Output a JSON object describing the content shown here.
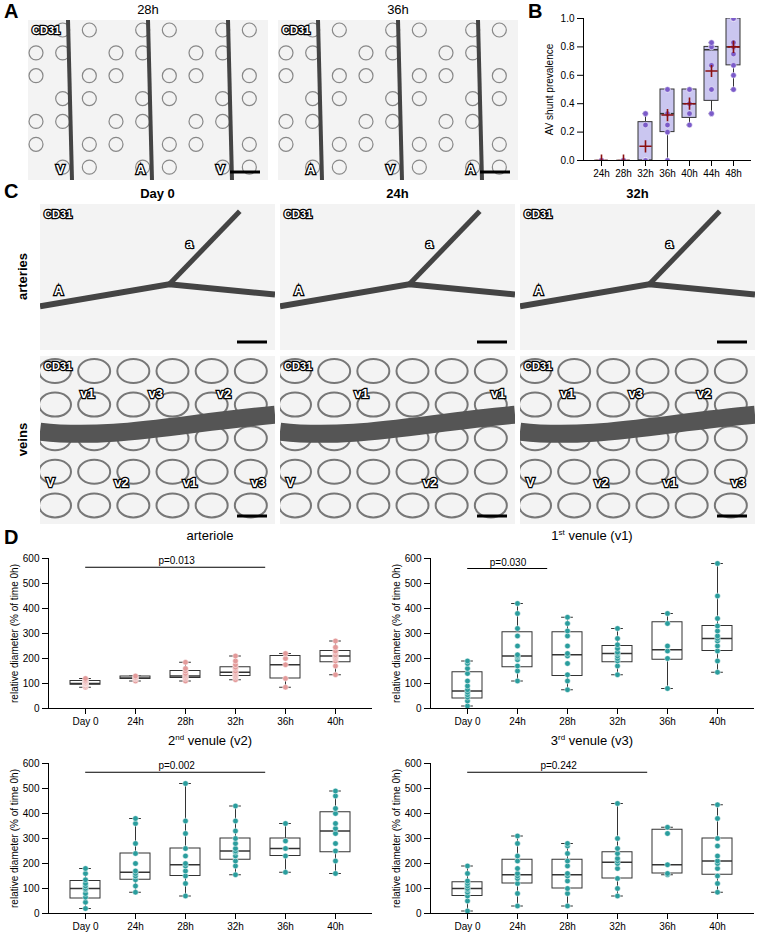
{
  "figure": {
    "panel_letters": [
      "A",
      "B",
      "C",
      "D"
    ]
  },
  "image_panels": {
    "A": {
      "stain": "CD31",
      "images": [
        {
          "title": "28h",
          "labels": [
            "V",
            "A",
            "V"
          ]
        },
        {
          "title": "36h",
          "labels": [
            "A",
            "V",
            "A"
          ]
        }
      ]
    },
    "C": {
      "stain": "CD31",
      "columns": [
        "Day 0",
        "24h",
        "32h"
      ],
      "rows": [
        {
          "title": "arteries",
          "cells": [
            [
              "A",
              "a"
            ],
            [
              "A",
              "a"
            ],
            [
              "A",
              "a"
            ]
          ]
        },
        {
          "title": "veins",
          "cells": [
            [
              "V",
              "v1",
              "v2",
              "v3",
              "v1",
              "v2",
              "v3"
            ],
            [
              "V",
              "v1",
              "v2",
              "v1"
            ],
            [
              "V",
              "v1",
              "v2",
              "v3",
              "v1",
              "v2",
              "v3"
            ]
          ]
        }
      ]
    }
  },
  "chart_data": [
    {
      "type": "box",
      "y_label": "AV shunt prevalence",
      "categories": [
        "24h",
        "28h",
        "32h",
        "36h",
        "40h",
        "44h",
        "48h"
      ],
      "ylim": [
        0,
        1
      ],
      "yticks": [
        {
          "value": 0,
          "label": "0.0"
        },
        0.2,
        0.4,
        0.6,
        0.8,
        {
          "value": 1,
          "label": "1.0"
        }
      ],
      "color": "#7b5bc9",
      "boxes": [
        {
          "min": 0,
          "q1": 0,
          "median": 0,
          "q3": 0,
          "max": 0
        },
        {
          "min": 0,
          "q1": 0,
          "median": 0,
          "q3": 0,
          "max": 0
        },
        {
          "min": 0,
          "q1": 0,
          "median": 0,
          "q3": 0.27,
          "max": 0.33
        },
        {
          "min": 0,
          "q1": 0.2,
          "median": 0.33,
          "q3": 0.5,
          "max": 0.5
        },
        {
          "min": 0.25,
          "q1": 0.3,
          "median": 0.4,
          "q3": 0.5,
          "max": 0.5
        },
        {
          "min": 0.33,
          "q1": 0.42,
          "median": 0.78,
          "q3": 0.8,
          "max": 0.83
        },
        {
          "min": 0.5,
          "q1": 0.67,
          "median": 0.8,
          "q3": 1,
          "max": 1
        }
      ],
      "means": [
        0,
        0,
        0.1,
        0.32,
        0.4,
        0.63,
        0.8
      ],
      "points": [
        [
          0,
          0,
          0,
          0,
          0
        ],
        [
          0,
          0,
          0,
          0,
          0,
          0
        ],
        [
          0,
          0,
          0,
          0,
          0.25,
          0.33
        ],
        [
          0,
          0.2,
          0.25,
          0.33,
          0.33,
          0.5,
          0.5
        ],
        [
          0.25,
          0.33,
          0.4,
          0.4,
          0.5,
          0.5
        ],
        [
          0.33,
          0.5,
          0.67,
          0.8,
          0.8,
          0.83
        ],
        [
          0.5,
          0.6,
          0.67,
          0.75,
          0.8,
          0.8,
          0.8,
          0.83,
          1,
          1,
          1,
          1
        ]
      ]
    },
    {
      "type": "box",
      "title": "arteriole",
      "y_label": "relative diameter (% of time 0h)",
      "categories": [
        "Day 0",
        "24h",
        "28h",
        "32h",
        "36h",
        "40h"
      ],
      "ylim": [
        0,
        600
      ],
      "yticks": [
        0,
        100,
        200,
        300,
        400,
        500,
        600
      ],
      "color": "#e39a9a",
      "boxes": [
        {
          "min": 85,
          "q1": 95,
          "median": 100,
          "q3": 110,
          "max": 120
        },
        {
          "min": 110,
          "q1": 118,
          "median": 122,
          "q3": 128,
          "max": 130
        },
        {
          "min": 110,
          "q1": 122,
          "median": 130,
          "q3": 150,
          "max": 185
        },
        {
          "min": 115,
          "q1": 130,
          "median": 145,
          "q3": 165,
          "max": 210
        },
        {
          "min": 85,
          "q1": 120,
          "median": 175,
          "q3": 210,
          "max": 220
        },
        {
          "min": 135,
          "q1": 185,
          "median": 210,
          "q3": 230,
          "max": 270
        }
      ],
      "points": [
        [
          85,
          90,
          95,
          98,
          100,
          100,
          102,
          105,
          108,
          110,
          115,
          120
        ],
        [
          110,
          118,
          122,
          125,
          130
        ],
        [
          110,
          120,
          125,
          130,
          135,
          140,
          150,
          160,
          185
        ],
        [
          115,
          125,
          130,
          135,
          140,
          145,
          150,
          160,
          165,
          175,
          190,
          210
        ],
        [
          85,
          120,
          175,
          200,
          220
        ],
        [
          135,
          170,
          190,
          200,
          205,
          210,
          215,
          225,
          230,
          245,
          270
        ]
      ],
      "annotations": [
        {
          "text": "p=0.013",
          "from": "Day 0",
          "to": "32h",
          "y": 565
        }
      ]
    },
    {
      "type": "box",
      "title": "1st venule (v1)",
      "y_label": "relative diameter (% of time 0h)",
      "categories": [
        "Day 0",
        "24h",
        "28h",
        "32h",
        "36h",
        "40h"
      ],
      "ylim": [
        0,
        600
      ],
      "yticks": [
        0,
        100,
        200,
        300,
        400,
        500,
        600
      ],
      "color": "#2a9d9d",
      "boxes": [
        {
          "min": 10,
          "q1": 40,
          "median": 70,
          "q3": 145,
          "max": 190
        },
        {
          "min": 110,
          "q1": 165,
          "median": 210,
          "q3": 305,
          "max": 420
        },
        {
          "min": 75,
          "q1": 130,
          "median": 215,
          "q3": 305,
          "max": 365
        },
        {
          "min": 135,
          "q1": 185,
          "median": 220,
          "q3": 250,
          "max": 320
        },
        {
          "min": 80,
          "q1": 195,
          "median": 235,
          "q3": 345,
          "max": 380
        },
        {
          "min": 145,
          "q1": 230,
          "median": 280,
          "q3": 330,
          "max": 580
        }
      ],
      "points": [
        [
          10,
          30,
          45,
          55,
          65,
          75,
          90,
          110,
          140,
          160,
          180,
          190
        ],
        [
          110,
          150,
          170,
          195,
          205,
          210,
          215,
          250,
          290,
          320,
          380,
          420
        ],
        [
          75,
          110,
          135,
          180,
          210,
          220,
          250,
          290,
          310,
          340,
          365
        ],
        [
          135,
          170,
          190,
          200,
          210,
          220,
          225,
          240,
          255,
          280,
          320
        ],
        [
          80,
          200,
          230,
          250,
          340,
          380
        ],
        [
          145,
          190,
          230,
          250,
          270,
          280,
          290,
          310,
          330,
          360,
          450,
          580
        ]
      ],
      "annotations": [
        {
          "text": "p=0.030",
          "from": "Day 0",
          "to": "24h",
          "y": 560
        }
      ]
    },
    {
      "type": "box",
      "title": "2nd venule (v2)",
      "y_label": "relative diameter (% of time 0h)",
      "categories": [
        "Day 0",
        "24h",
        "28h",
        "32h",
        "36h",
        "40h"
      ],
      "ylim": [
        0,
        600
      ],
      "yticks": [
        0,
        100,
        200,
        300,
        400,
        500,
        600
      ],
      "color": "#2a9d9d",
      "boxes": [
        {
          "min": 20,
          "q1": 60,
          "median": 100,
          "q3": 130,
          "max": 180
        },
        {
          "min": 85,
          "q1": 135,
          "median": 165,
          "q3": 240,
          "max": 380
        },
        {
          "min": 70,
          "q1": 150,
          "median": 195,
          "q3": 260,
          "max": 520
        },
        {
          "min": 155,
          "q1": 215,
          "median": 250,
          "q3": 300,
          "max": 430
        },
        {
          "min": 165,
          "q1": 230,
          "median": 260,
          "q3": 300,
          "max": 360
        },
        {
          "min": 160,
          "q1": 245,
          "median": 330,
          "q3": 405,
          "max": 490
        }
      ],
      "points": [
        [
          20,
          45,
          65,
          80,
          95,
          100,
          110,
          120,
          135,
          160,
          180
        ],
        [
          85,
          110,
          135,
          150,
          160,
          170,
          200,
          240,
          280,
          360,
          380
        ],
        [
          70,
          120,
          150,
          170,
          190,
          200,
          230,
          260,
          320,
          370,
          520
        ],
        [
          155,
          190,
          210,
          230,
          245,
          250,
          260,
          280,
          300,
          330,
          370,
          430
        ],
        [
          165,
          230,
          260,
          290,
          360
        ],
        [
          160,
          210,
          250,
          280,
          320,
          340,
          360,
          400,
          420,
          470,
          490
        ]
      ],
      "annotations": [
        {
          "text": "p=0.002",
          "from": "Day 0",
          "to": "32h",
          "y": 565
        }
      ]
    },
    {
      "type": "box",
      "title": "3rd venule (v3)",
      "y_label": "relative diameter (% of time 0h)",
      "categories": [
        "Day 0",
        "24h",
        "28h",
        "32h",
        "36h",
        "40h"
      ],
      "ylim": [
        0,
        600
      ],
      "yticks": [
        0,
        100,
        200,
        300,
        400,
        500,
        600
      ],
      "color": "#2a9d9d",
      "boxes": [
        {
          "min": 10,
          "q1": 70,
          "median": 100,
          "q3": 125,
          "max": 190
        },
        {
          "min": 30,
          "q1": 120,
          "median": 155,
          "q3": 215,
          "max": 310
        },
        {
          "min": 30,
          "q1": 100,
          "median": 155,
          "q3": 215,
          "max": 280
        },
        {
          "min": 70,
          "q1": 140,
          "median": 205,
          "q3": 245,
          "max": 440
        },
        {
          "min": 155,
          "q1": 160,
          "median": 195,
          "q3": 335,
          "max": 345
        },
        {
          "min": 85,
          "q1": 155,
          "median": 210,
          "q3": 300,
          "max": 435
        }
      ],
      "points": [
        [
          10,
          50,
          70,
          85,
          95,
          100,
          110,
          120,
          130,
          160,
          190
        ],
        [
          30,
          80,
          120,
          140,
          150,
          160,
          180,
          210,
          230,
          280,
          310
        ],
        [
          30,
          80,
          100,
          130,
          150,
          160,
          190,
          210,
          240,
          270,
          280
        ],
        [
          70,
          100,
          140,
          180,
          200,
          210,
          220,
          240,
          260,
          300,
          440
        ],
        [
          155,
          160,
          195,
          320,
          345
        ],
        [
          85,
          120,
          150,
          180,
          200,
          210,
          230,
          270,
          300,
          380,
          435
        ]
      ],
      "annotations": [
        {
          "text": "p=0.242",
          "from": "Day 0",
          "to": "32h",
          "y": 565
        }
      ]
    }
  ]
}
